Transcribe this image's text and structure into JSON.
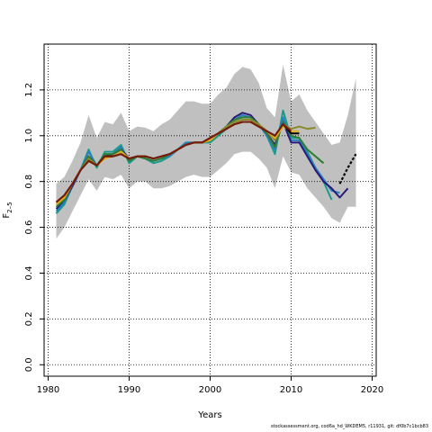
{
  "chart_data": {
    "type": "line",
    "xlabel": "Years",
    "ylabel": "F",
    "ylabel_subscript": "2–5",
    "xlim": [
      1979.5,
      2020.5
    ],
    "ylim": [
      -0.05,
      1.4
    ],
    "xticks": [
      1980,
      1990,
      2000,
      2010,
      2020
    ],
    "yticks": [
      0.0,
      0.2,
      0.4,
      0.6,
      0.8,
      1.0,
      1.2
    ],
    "grid": true,
    "uncertainty_band": {
      "color": "#c0c0c0",
      "years": [
        1981,
        1982,
        1983,
        1984,
        1985,
        1986,
        1987,
        1988,
        1989,
        1990,
        1991,
        1992,
        1993,
        1994,
        1995,
        1996,
        1997,
        1998,
        1999,
        2000,
        2001,
        2002,
        2003,
        2004,
        2005,
        2006,
        2007,
        2008,
        2009,
        2010,
        2011,
        2012,
        2013,
        2014,
        2015,
        2016,
        2017,
        2018
      ],
      "upper": [
        0.79,
        0.82,
        0.89,
        0.97,
        1.09,
        0.99,
        1.06,
        1.05,
        1.1,
        1.02,
        1.04,
        1.035,
        1.02,
        1.05,
        1.07,
        1.11,
        1.15,
        1.15,
        1.14,
        1.14,
        1.18,
        1.21,
        1.27,
        1.3,
        1.29,
        1.23,
        1.12,
        1.08,
        1.31,
        1.15,
        1.18,
        1.11,
        1.06,
        1.01,
        0.96,
        0.97,
        1.09,
        1.25
      ],
      "lower": [
        0.55,
        0.6,
        0.67,
        0.74,
        0.81,
        0.76,
        0.82,
        0.81,
        0.83,
        0.77,
        0.8,
        0.8,
        0.77,
        0.77,
        0.78,
        0.8,
        0.82,
        0.83,
        0.82,
        0.82,
        0.85,
        0.88,
        0.92,
        0.93,
        0.93,
        0.9,
        0.86,
        0.77,
        0.91,
        0.84,
        0.83,
        0.77,
        0.73,
        0.69,
        0.64,
        0.62,
        0.69,
        0.69
      ]
    },
    "series": [
      {
        "color": "#1a9a8a",
        "x": [
          1981,
          1982,
          1983,
          1984,
          1985,
          1986,
          1987,
          1988,
          1989,
          1990,
          1991,
          1992,
          1993,
          1994,
          1995,
          1996,
          1997,
          1998,
          1999,
          2000,
          2001,
          2002,
          2003,
          2004,
          2005,
          2006,
          2007,
          2008,
          2009,
          2010,
          2011,
          2012,
          2013,
          2014,
          2015
        ],
        "y": [
          0.66,
          0.7,
          0.78,
          0.85,
          0.94,
          0.86,
          0.93,
          0.93,
          0.96,
          0.88,
          0.91,
          0.9,
          0.88,
          0.89,
          0.91,
          0.94,
          0.97,
          0.97,
          0.97,
          0.97,
          1.0,
          1.03,
          1.07,
          1.08,
          1.08,
          1.05,
          1.0,
          0.92,
          1.11,
          0.99,
          0.99,
          0.93,
          0.86,
          0.8,
          0.72
        ]
      },
      {
        "color": "#2a7fbf",
        "x": [
          1981,
          1982,
          1983,
          1984,
          1985,
          1986,
          1987,
          1988,
          1989,
          1990,
          1991,
          1992,
          1993,
          1994,
          1995,
          1996,
          1997,
          1998,
          1999,
          2000,
          2001,
          2002,
          2003,
          2004,
          2005,
          2006,
          2007,
          2008,
          2009,
          2010,
          2011,
          2012,
          2013,
          2014,
          2015,
          2016
        ],
        "y": [
          0.67,
          0.71,
          0.78,
          0.85,
          0.93,
          0.87,
          0.92,
          0.92,
          0.95,
          0.89,
          0.91,
          0.9,
          0.89,
          0.9,
          0.91,
          0.94,
          0.97,
          0.97,
          0.97,
          0.98,
          1.01,
          1.04,
          1.07,
          1.09,
          1.08,
          1.05,
          1.0,
          0.94,
          1.08,
          0.98,
          0.98,
          0.92,
          0.86,
          0.81,
          0.76,
          0.75
        ]
      },
      {
        "color": "#2a1a7a",
        "x": [
          1981,
          1982,
          1983,
          1984,
          1985,
          1986,
          1987,
          1988,
          1989,
          1990,
          1991,
          1992,
          1993,
          1994,
          1995,
          1996,
          1997,
          1998,
          1999,
          2000,
          2001,
          2002,
          2003,
          2004,
          2005,
          2006,
          2007,
          2008,
          2009,
          2010,
          2011,
          2012,
          2013,
          2014,
          2015,
          2016,
          2017
        ],
        "y": [
          0.68,
          0.72,
          0.78,
          0.85,
          0.91,
          0.87,
          0.91,
          0.92,
          0.94,
          0.9,
          0.91,
          0.91,
          0.9,
          0.91,
          0.92,
          0.94,
          0.96,
          0.97,
          0.97,
          0.98,
          1.01,
          1.04,
          1.08,
          1.1,
          1.09,
          1.05,
          1.01,
          0.96,
          1.06,
          0.97,
          0.97,
          0.91,
          0.85,
          0.8,
          0.77,
          0.73,
          0.77
        ]
      },
      {
        "color": "#2e7d32",
        "x": [
          1981,
          1982,
          1983,
          1984,
          1985,
          1986,
          1987,
          1988,
          1989,
          1990,
          1991,
          1992,
          1993,
          1994,
          1995,
          1996,
          1997,
          1998,
          1999,
          2000,
          2001,
          2002,
          2003,
          2004,
          2005,
          2006,
          2007,
          2008,
          2009,
          2010,
          2011,
          2012,
          2013,
          2014
        ],
        "y": [
          0.69,
          0.72,
          0.79,
          0.85,
          0.91,
          0.87,
          0.92,
          0.92,
          0.94,
          0.89,
          0.91,
          0.9,
          0.89,
          0.9,
          0.92,
          0.94,
          0.96,
          0.97,
          0.97,
          0.98,
          1.01,
          1.04,
          1.07,
          1.08,
          1.08,
          1.05,
          1.01,
          0.95,
          1.06,
          1.0,
          0.99,
          0.94,
          0.91,
          0.88
        ]
      },
      {
        "color": "#8a8a2a",
        "x": [
          1981,
          1982,
          1983,
          1984,
          1985,
          1986,
          1987,
          1988,
          1989,
          1990,
          1991,
          1992,
          1993,
          1994,
          1995,
          1996,
          1997,
          1998,
          1999,
          2000,
          2001,
          2002,
          2003,
          2004,
          2005,
          2006,
          2007,
          2008,
          2009,
          2010,
          2011,
          2012,
          2013
        ],
        "y": [
          0.7,
          0.73,
          0.79,
          0.85,
          0.9,
          0.87,
          0.91,
          0.91,
          0.93,
          0.9,
          0.91,
          0.91,
          0.9,
          0.91,
          0.92,
          0.94,
          0.96,
          0.97,
          0.97,
          0.98,
          1.01,
          1.04,
          1.06,
          1.07,
          1.07,
          1.05,
          1.02,
          0.98,
          1.05,
          1.03,
          1.04,
          1.03,
          1.035
        ]
      },
      {
        "color": "#e0b020",
        "x": [
          1981,
          1982,
          1983,
          1984,
          1985,
          1986,
          1987,
          1988,
          1989,
          1990,
          1991,
          1992,
          1993,
          1994,
          1995,
          1996,
          1997,
          1998,
          1999,
          2000,
          2001,
          2002,
          2003,
          2004,
          2005,
          2006,
          2007,
          2008,
          2009,
          2010,
          2011
        ],
        "y": [
          0.7,
          0.73,
          0.79,
          0.85,
          0.89,
          0.87,
          0.9,
          0.91,
          0.93,
          0.9,
          0.91,
          0.91,
          0.9,
          0.91,
          0.92,
          0.94,
          0.96,
          0.97,
          0.97,
          0.98,
          1.01,
          1.03,
          1.05,
          1.06,
          1.06,
          1.04,
          1.02,
          0.99,
          1.04,
          1.02,
          1.02
        ]
      },
      {
        "color": "#000000",
        "x": [
          1981,
          1982,
          1983,
          1984,
          1985,
          1986,
          1987,
          1988,
          1989,
          1990,
          1991,
          1992,
          1993,
          1994,
          1995,
          1996,
          1997,
          1998,
          1999,
          2000,
          2001,
          2002,
          2003,
          2004,
          2005,
          2006,
          2007,
          2008,
          2009,
          2010,
          2011
        ],
        "y": [
          0.71,
          0.74,
          0.79,
          0.85,
          0.89,
          0.87,
          0.91,
          0.91,
          0.92,
          0.9,
          0.91,
          0.91,
          0.9,
          0.91,
          0.92,
          0.94,
          0.96,
          0.97,
          0.97,
          0.99,
          1.01,
          1.03,
          1.05,
          1.06,
          1.06,
          1.04,
          1.02,
          1.0,
          1.05,
          1.01,
          1.01
        ]
      },
      {
        "color": "#7a1a0a",
        "x": [
          1981,
          1982,
          1983,
          1984,
          1985,
          1986,
          1987,
          1988,
          1989,
          1990,
          1991,
          1992,
          1993,
          1994,
          1995,
          1996,
          1997,
          1998,
          1999,
          2000,
          2001,
          2002,
          2003,
          2004,
          2005,
          2006,
          2007,
          2008,
          2009,
          2010
        ],
        "y": [
          0.71,
          0.74,
          0.79,
          0.85,
          0.89,
          0.87,
          0.91,
          0.91,
          0.92,
          0.9,
          0.91,
          0.91,
          0.9,
          0.91,
          0.92,
          0.94,
          0.96,
          0.97,
          0.97,
          0.99,
          1.01,
          1.03,
          1.05,
          1.06,
          1.06,
          1.04,
          1.02,
          1.0,
          1.05,
          1.02
        ]
      },
      {
        "color": "#000000",
        "dashed": true,
        "x": [
          2016,
          2017,
          2018
        ],
        "y": [
          0.79,
          0.86,
          0.92
        ]
      }
    ]
  },
  "footer_text": "stockassessment.org, cod6a_hd_WKDEM5, r11931, git: df0b7c1bcb83"
}
